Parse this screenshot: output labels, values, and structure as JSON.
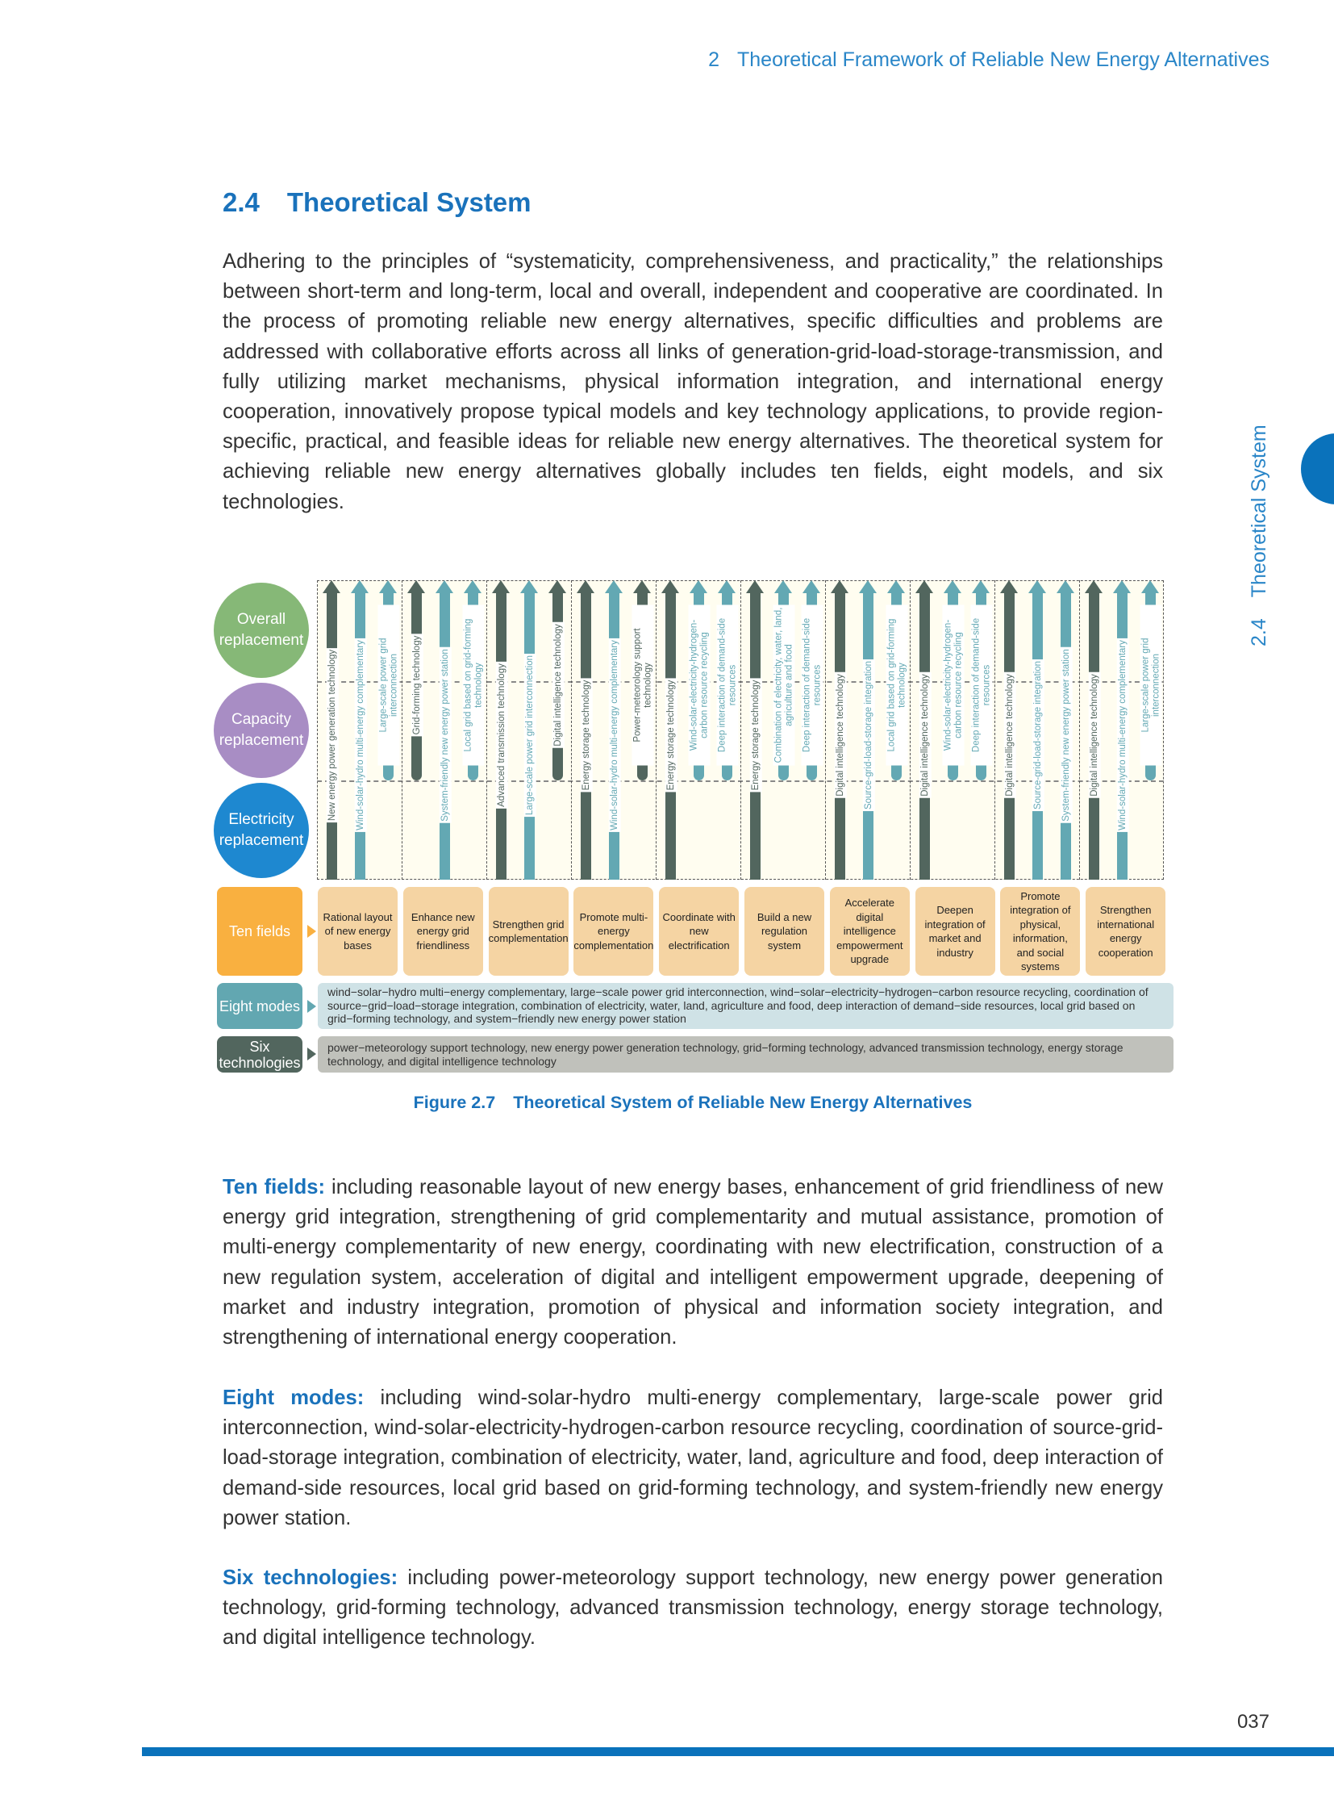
{
  "header": {
    "chapter_number": "2",
    "chapter_title": "Theoretical Framework of Reliable New Energy Alternatives"
  },
  "section": {
    "number": "2.4",
    "title": "Theoretical System"
  },
  "side_tab": {
    "number": "2.4",
    "title": "Theoretical System"
  },
  "intro_paragraph": "Adhering to the principles of “systematicity, comprehensiveness, and practicality,” the relationships between short-term and long-term, local and overall, independent and cooperative are coordinated. In the process of promoting reliable new energy alternatives, specific difficulties and problems are addressed with collaborative efforts across all links of generation-grid-load-storage-transmission, and fully utilizing market mechanisms, physical information integration, and international energy cooperation, innovatively propose typical models and key technology applications, to provide region-specific, practical, and feasible ideas for reliable new energy alternatives. The theoretical system for achieving reliable new energy alternatives globally includes ten fields, eight models, and six technologies.",
  "figure": {
    "levels": [
      {
        "id": "overall",
        "label": "Overall replacement",
        "color": "#86b877"
      },
      {
        "id": "capacity",
        "label": "Capacity replacement",
        "color": "#a88dc4"
      },
      {
        "id": "electricity",
        "label": "Electricity replacement",
        "color": "#1e88d0"
      }
    ],
    "colors": {
      "technology": "#52665e",
      "mode": "#63a8b3",
      "grid_bg": "#fffdf0"
    },
    "columns": [
      {
        "arrows": [
          {
            "label": "New energy power generation technology",
            "kind": "technology",
            "levels": [
              "overall",
              "capacity",
              "electricity"
            ]
          },
          {
            "label": "Wind-solar-hydro multi-energy complementary",
            "kind": "mode",
            "levels": [
              "overall",
              "capacity",
              "electricity"
            ]
          },
          {
            "label": "Large-scale power grid interconnection",
            "kind": "mode",
            "levels": [
              "overall",
              "capacity"
            ]
          }
        ]
      },
      {
        "arrows": [
          {
            "label": "Grid-forming technology",
            "kind": "technology",
            "levels": [
              "overall",
              "capacity"
            ]
          },
          {
            "label": "System-friendly new energy power station",
            "kind": "mode",
            "levels": [
              "overall",
              "capacity",
              "electricity"
            ]
          },
          {
            "label": "Local grid based on grid-forming technology",
            "kind": "mode",
            "levels": [
              "overall",
              "capacity"
            ]
          }
        ]
      },
      {
        "arrows": [
          {
            "label": "Advanced transmission technology",
            "kind": "technology",
            "levels": [
              "overall",
              "capacity",
              "electricity"
            ]
          },
          {
            "label": "Large-scale power grid interconnection",
            "kind": "mode",
            "levels": [
              "overall",
              "capacity",
              "electricity"
            ]
          },
          {
            "label": "Digital intelligence technology",
            "kind": "technology",
            "levels": [
              "overall",
              "capacity"
            ]
          }
        ]
      },
      {
        "arrows": [
          {
            "label": "Energy storage technology",
            "kind": "technology",
            "levels": [
              "overall",
              "capacity",
              "electricity"
            ]
          },
          {
            "label": "Wind-solar-hydro multi-energy complementary",
            "kind": "mode",
            "levels": [
              "overall",
              "capacity",
              "electricity"
            ]
          },
          {
            "label": "Power-meteorology support technology",
            "kind": "technology",
            "levels": [
              "overall",
              "capacity"
            ]
          }
        ]
      },
      {
        "arrows": [
          {
            "label": "Energy storage technology",
            "kind": "technology",
            "levels": [
              "overall",
              "capacity",
              "electricity"
            ]
          },
          {
            "label": "Wind-solar-electricity-hydrogen-carbon resource recycling",
            "kind": "mode",
            "levels": [
              "overall",
              "capacity"
            ]
          },
          {
            "label": "Deep interaction of demand-side resources",
            "kind": "mode",
            "levels": [
              "overall",
              "capacity"
            ]
          }
        ]
      },
      {
        "arrows": [
          {
            "label": "Energy storage technology",
            "kind": "technology",
            "levels": [
              "overall",
              "capacity",
              "electricity"
            ]
          },
          {
            "label": "Combination of electricity, water, land, agriculture and food",
            "kind": "mode",
            "levels": [
              "overall",
              "capacity"
            ]
          },
          {
            "label": "Deep interaction of demand-side resources",
            "kind": "mode",
            "levels": [
              "overall",
              "capacity"
            ]
          }
        ]
      },
      {
        "arrows": [
          {
            "label": "Digital intelligence technology",
            "kind": "technology",
            "levels": [
              "overall",
              "capacity",
              "electricity"
            ]
          },
          {
            "label": "Source-grid-load-storage integration",
            "kind": "mode",
            "levels": [
              "overall",
              "capacity",
              "electricity"
            ]
          },
          {
            "label": "Local grid based on grid-forming technology",
            "kind": "mode",
            "levels": [
              "overall",
              "capacity"
            ]
          }
        ]
      },
      {
        "arrows": [
          {
            "label": "Digital intelligence technology",
            "kind": "technology",
            "levels": [
              "overall",
              "capacity",
              "electricity"
            ]
          },
          {
            "label": "Wind-solar-electricity-hydrogen-carbon resource recycling",
            "kind": "mode",
            "levels": [
              "overall",
              "capacity"
            ]
          },
          {
            "label": "Deep interaction of demand-side resources",
            "kind": "mode",
            "levels": [
              "overall",
              "capacity"
            ]
          }
        ]
      },
      {
        "arrows": [
          {
            "label": "Digital intelligence technology",
            "kind": "technology",
            "levels": [
              "overall",
              "capacity",
              "electricity"
            ]
          },
          {
            "label": "Source-grid-load-storage integration",
            "kind": "mode",
            "levels": [
              "overall",
              "capacity",
              "electricity"
            ]
          },
          {
            "label": "System-friendly new energy power station",
            "kind": "mode",
            "levels": [
              "overall",
              "capacity",
              "electricity"
            ]
          }
        ]
      },
      {
        "arrows": [
          {
            "label": "Digital intelligence technology",
            "kind": "technology",
            "levels": [
              "overall",
              "capacity",
              "electricity"
            ]
          },
          {
            "label": "Wind-solar-hydro multi-energy complementary",
            "kind": "mode",
            "levels": [
              "overall",
              "capacity",
              "electricity"
            ]
          },
          {
            "label": "Large-scale power grid interconnection",
            "kind": "mode",
            "levels": [
              "overall",
              "capacity"
            ]
          }
        ]
      }
    ],
    "ten_fields": {
      "label": "Ten fields",
      "color": "#f9b040",
      "items": [
        "Rational layout of new energy bases",
        "Enhance new energy grid friendliness",
        "Strengthen grid complementation",
        "Promote multi-energy complementation",
        "Coordinate with new electrification",
        "Build a new regulation system",
        "Accelerate digital intelligence empowerment upgrade",
        "Deepen integration of market and industry",
        "Promote integration of physical, information, and social systems",
        "Strengthen international energy cooperation"
      ]
    },
    "eight_modes": {
      "label": "Eight modes",
      "color": "#62a7b1",
      "text": "wind−solar−hydro multi−energy complementary, large−scale power grid interconnection, wind−solar−electricity−hydrogen−carbon resource recycling, coordination of source−grid−load−storage integration, combination of electricity, water, land, agriculture and food, deep interaction of demand−side resources, local grid based on grid−forming technology, and system−friendly new energy power station"
    },
    "six_technologies": {
      "label": "Six technologies",
      "color": "#52665e",
      "text": "power−meteorology support technology, new energy power generation technology, grid−forming technology, advanced transmission technology, energy storage technology, and digital intelligence technology"
    },
    "caption_number": "Figure 2.7",
    "caption_title": "Theoretical System of Reliable New Energy Alternatives"
  },
  "definitions": [
    {
      "term": "Ten fields:",
      "text": " including reasonable layout of new energy bases, enhancement of grid friendliness of new energy grid integration, strengthening of grid complementarity and mutual assistance, promotion of multi-energy complementarity of new energy, coordinating with new electrification, construction of a new regulation system, acceleration of digital and intelligent empowerment upgrade, deepening of market and industry integration, promotion of physical and information society integration, and strengthening of international energy cooperation."
    },
    {
      "term": "Eight modes:",
      "text": " including wind-solar-hydro multi-energy complementary, large-scale power grid interconnection, wind-solar-electricity-hydrogen-carbon resource recycling, coordination of source-grid-load-storage integration, combination of electricity, water, land, agriculture and food, deep interaction of demand-side resources, local grid based on grid-forming technology, and system-friendly new energy power station."
    },
    {
      "term": "Six technologies:",
      "text": " including power-meteorology support technology, new energy power generation technology, grid-forming technology, advanced transmission technology, energy storage technology, and digital intelligence technology."
    }
  ],
  "page_number": "037"
}
